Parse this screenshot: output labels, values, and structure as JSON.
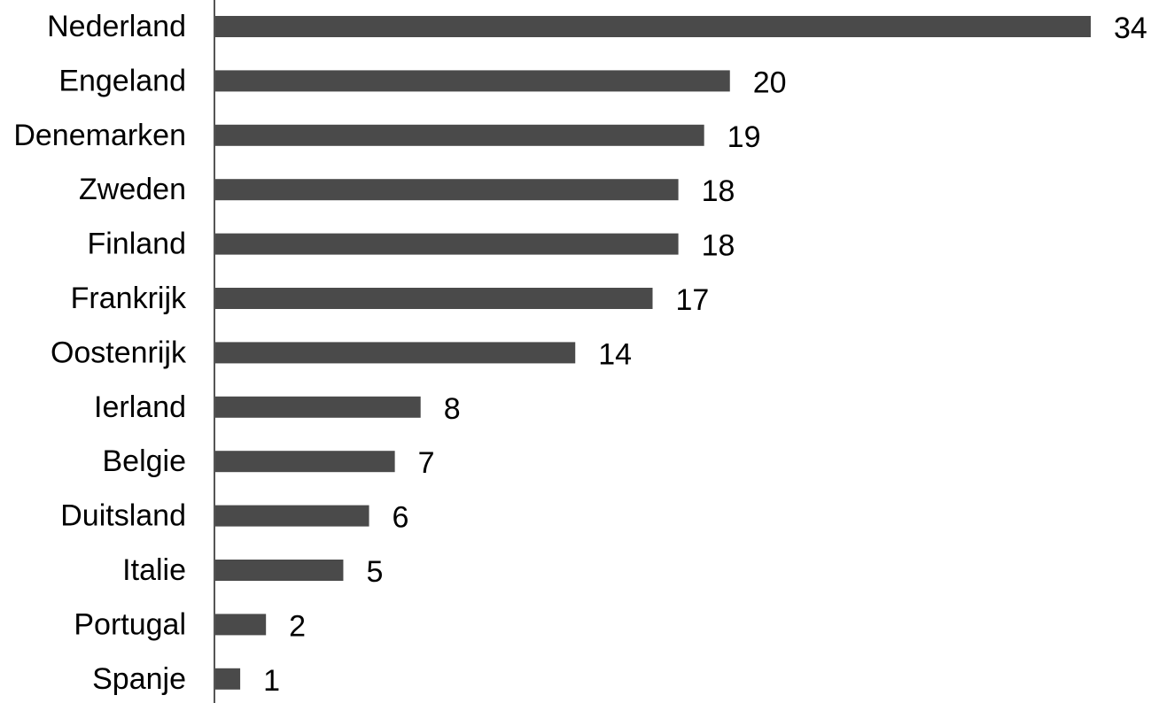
{
  "chart_data": {
    "type": "bar",
    "orientation": "horizontal",
    "categories": [
      "Nederland",
      "Engeland",
      "Denemarken",
      "Zweden",
      "Finland",
      "Frankrijk",
      "Oostenrijk",
      "Ierland",
      "Belgie",
      "Duitsland",
      "Italie",
      "Portugal",
      "Spanje"
    ],
    "values": [
      34,
      20,
      19,
      18,
      18,
      17,
      14,
      8,
      7,
      6,
      5,
      2,
      1
    ],
    "title": "",
    "xlabel": "",
    "ylabel": "",
    "xlim": [
      0,
      34
    ],
    "grid": false,
    "legend": "none",
    "data_labels": true,
    "bar_color": "#4a4a4a",
    "axis_color": "#555555"
  }
}
